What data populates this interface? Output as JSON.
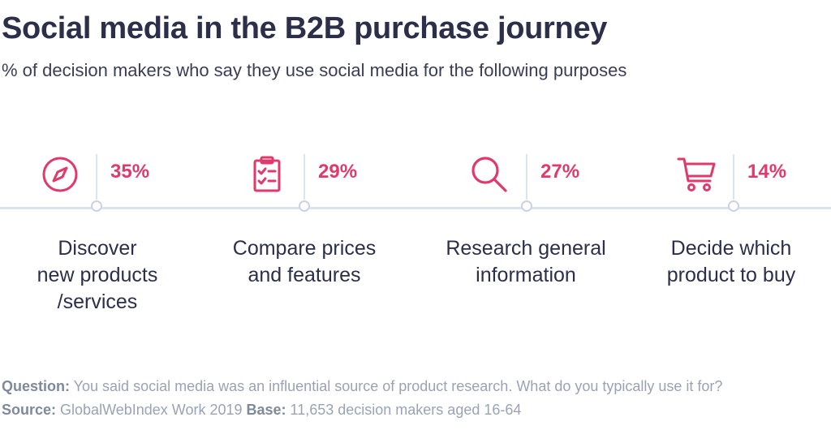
{
  "title": "Social media in the B2B purchase journey",
  "subtitle": "% of decision makers who say they use social media for the following purposes",
  "colors": {
    "accent": "#e0396b",
    "text": "#2b2f4a",
    "line": "#dbe3ec",
    "muted": "#9aa3b5"
  },
  "chart_data": {
    "type": "bar",
    "title": "Social media in the B2B purchase journey",
    "subtitle": "% of decision makers who say they use social media for the following purposes",
    "categories": [
      "Discover new products /services",
      "Compare prices and features",
      "Research general information",
      "Decide which product to buy"
    ],
    "values": [
      35,
      29,
      27,
      14
    ],
    "unit": "%",
    "items": [
      {
        "icon": "compass-icon",
        "value_label": "35%",
        "label_lines": [
          "Discover",
          "new products",
          "/services"
        ]
      },
      {
        "icon": "clipboard-checklist-icon",
        "value_label": "29%",
        "label_lines": [
          "Compare prices",
          "and features"
        ]
      },
      {
        "icon": "magnifier-icon",
        "value_label": "27%",
        "label_lines": [
          "Research general",
          "information"
        ]
      },
      {
        "icon": "shopping-cart-icon",
        "value_label": "14%",
        "label_lines": [
          "Decide which",
          "product to buy"
        ]
      }
    ]
  },
  "footer": {
    "question_label": "Question:",
    "question_text": " You said social media was an influential source of product research. What do you typically use it for?",
    "source_label": "Source:",
    "source_text": " GlobalWebIndex Work 2019 ",
    "base_label": "Base:",
    "base_text": " 11,653 decision makers aged 16-64"
  }
}
